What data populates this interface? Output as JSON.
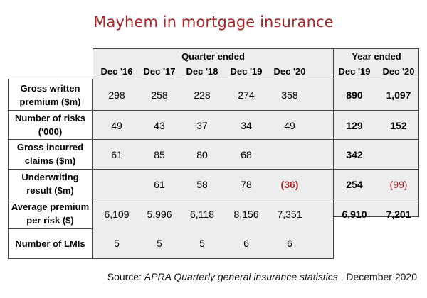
{
  "title": "Mayhem in mortgage insurance",
  "headers": {
    "quarter_group": "Quarter ended",
    "year_group": "Year ended",
    "quarter_cols": [
      "Dec '16",
      "Dec '17",
      "Dec '18",
      "Dec '19",
      "Dec '20"
    ],
    "year_cols": [
      "Dec '19",
      "Dec '20"
    ]
  },
  "rows": [
    {
      "label1": "Gross written",
      "label2": "premium ($m)",
      "q": [
        "298",
        "258",
        "228",
        "274",
        "358"
      ],
      "y": [
        "890",
        "1,097"
      ]
    },
    {
      "label1": "Number of risks",
      "label2": "('000)",
      "q": [
        "49",
        "43",
        "37",
        "34",
        "49"
      ],
      "y": [
        "129",
        "152"
      ]
    },
    {
      "label1": "Gross incurred",
      "label2": "claims ($m)",
      "q": [
        "61",
        "85",
        "80",
        "68",
        ""
      ],
      "y": [
        "342",
        ""
      ]
    },
    {
      "label1": "Underwriting",
      "label2": "result ($m)",
      "q": [
        "",
        "61",
        "58",
        "78",
        "(36)"
      ],
      "y": [
        "254",
        "(99)"
      ]
    },
    {
      "label1": "Average premium",
      "label2": "per risk ($)",
      "q": [
        "6,109",
        "5,996",
        "6,118",
        "8,156",
        "7,351"
      ],
      "y": [
        "6,910",
        "7,201"
      ]
    },
    {
      "label1": "Number of LMIs",
      "label2": "",
      "q": [
        "5",
        "5",
        "5",
        "6",
        "6"
      ],
      "y": [
        "",
        ""
      ]
    }
  ],
  "source": {
    "prefix": "Source: ",
    "italic": "APRA Quarterly general insurance statistics",
    "suffix": " , December 2020"
  },
  "colors": {
    "accent": "#a3282c",
    "cell_bg": "#ededed",
    "border": "#444444"
  }
}
